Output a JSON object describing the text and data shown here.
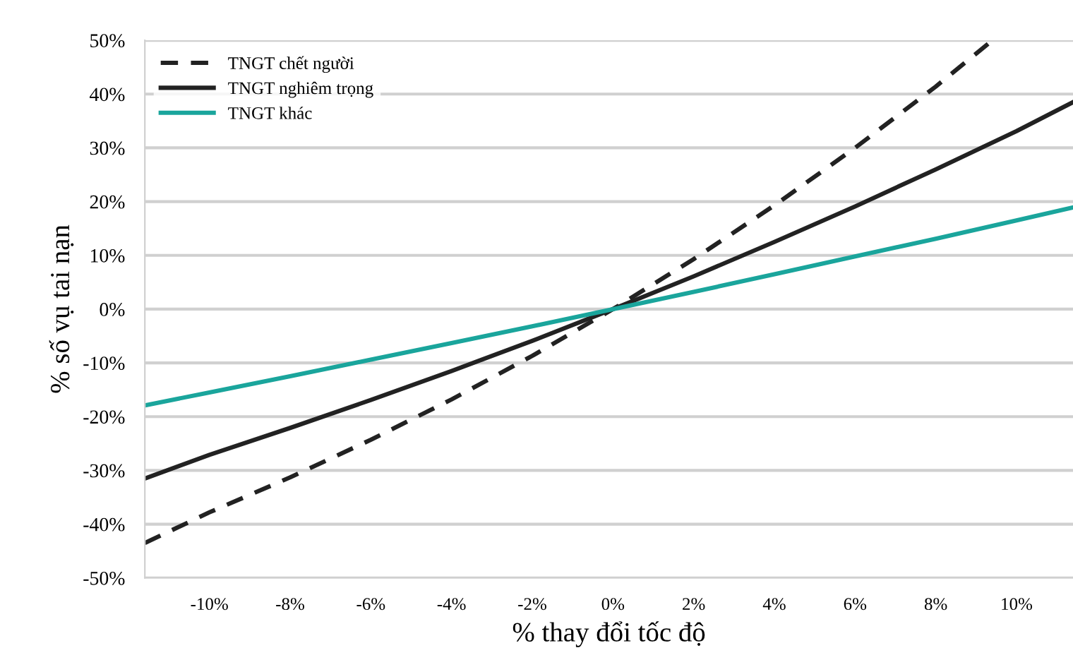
{
  "chart_data": {
    "type": "line",
    "xlabel": "% thay đổi tốc độ",
    "ylabel": "% số vụ tai nạn",
    "xlim": [
      -11.6,
      11.4
    ],
    "ylim": [
      -50,
      50
    ],
    "xticks": [
      {
        "value": -10,
        "label": "-10%"
      },
      {
        "value": -8,
        "label": "-8%"
      },
      {
        "value": -6,
        "label": "-6%"
      },
      {
        "value": -4,
        "label": "-4%"
      },
      {
        "value": -2,
        "label": "-2%"
      },
      {
        "value": 0,
        "label": "0%"
      },
      {
        "value": 2,
        "label": "2%"
      },
      {
        "value": 4,
        "label": "4%"
      },
      {
        "value": 6,
        "label": "6%"
      },
      {
        "value": 8,
        "label": "8%"
      },
      {
        "value": 10,
        "label": "10%"
      }
    ],
    "yticks": [
      {
        "value": -50,
        "label": "-50%"
      },
      {
        "value": -40,
        "label": "-40%"
      },
      {
        "value": -30,
        "label": "-30%"
      },
      {
        "value": -20,
        "label": "-20%"
      },
      {
        "value": -10,
        "label": "-10%"
      },
      {
        "value": 0,
        "label": "0%"
      },
      {
        "value": 10,
        "label": "10%"
      },
      {
        "value": 20,
        "label": "20%"
      },
      {
        "value": 30,
        "label": "30%"
      },
      {
        "value": 40,
        "label": "40%"
      },
      {
        "value": 50,
        "label": "50%"
      }
    ],
    "grid": "y",
    "legend": "top left",
    "series": [
      {
        "name": "TNGT chết người",
        "color": "#222222",
        "line_style": "dashed",
        "x": [
          -11.6,
          -10,
          -8,
          -6,
          -4,
          -2,
          0,
          2,
          4,
          6,
          8,
          9.4
        ],
        "values": [
          -43.5,
          -37.8,
          -31.3,
          -24.3,
          -16.8,
          -8.7,
          0,
          9.3,
          19.3,
          30.0,
          41.4,
          50
        ]
      },
      {
        "name": "TNGT nghiêm trọng",
        "color": "#222222",
        "line_style": "solid",
        "x": [
          -11.6,
          -10,
          -8,
          -6,
          -4,
          -2,
          0,
          2,
          4,
          6,
          8,
          10,
          11.4
        ],
        "values": [
          -31.5,
          -27.1,
          -22.1,
          -16.9,
          -11.5,
          -5.9,
          0,
          6.1,
          12.5,
          19.1,
          26.0,
          33.1,
          38.5
        ]
      },
      {
        "name": "TNGT khác",
        "color": "#1aa59c",
        "line_style": "solid",
        "x": [
          -11.6,
          -10,
          -8,
          -6,
          -4,
          -2,
          0,
          2,
          4,
          6,
          8,
          10,
          11.4
        ],
        "values": [
          -17.9,
          -15.5,
          -12.5,
          -9.4,
          -6.3,
          -3.2,
          0,
          3.2,
          6.5,
          9.8,
          13.1,
          16.5,
          18.9
        ]
      }
    ]
  }
}
